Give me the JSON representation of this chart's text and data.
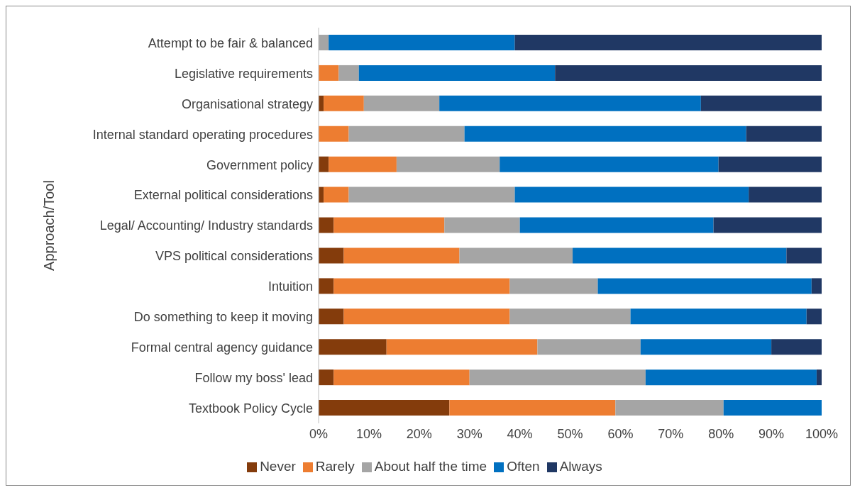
{
  "chart_data": {
    "type": "bar",
    "orientation": "horizontal",
    "stacked": true,
    "ylabel": "Approach/Tool",
    "categories": [
      "Attempt to be fair & balanced",
      "Legislative requirements",
      "Organisational strategy",
      "Internal standard operating procedures",
      "Government policy",
      "External political considerations",
      "Legal/ Accounting/ Industry standards",
      "VPS political considerations",
      "Intuition",
      "Do something to keep it moving",
      "Formal central agency guidance",
      "Follow my boss' lead",
      "Textbook Policy Cycle"
    ],
    "series": [
      {
        "name": "Never",
        "color": "#843c0c",
        "values": [
          0,
          0,
          1,
          0,
          2,
          1,
          3,
          5,
          3,
          5,
          13.5,
          3,
          26
        ]
      },
      {
        "name": "Rarely",
        "color": "#ed7d31",
        "values": [
          0,
          4,
          8,
          6,
          13.5,
          5,
          22,
          23,
          35,
          33,
          30,
          27,
          33
        ]
      },
      {
        "name": "About half the time",
        "color": "#a5a5a5",
        "values": [
          2,
          4,
          15,
          23,
          20.5,
          33,
          15,
          22.5,
          17.5,
          24,
          20.5,
          35,
          21.5
        ]
      },
      {
        "name": "Often",
        "color": "#0070c0",
        "values": [
          37,
          39,
          52,
          56,
          43.5,
          46.5,
          38.5,
          42.5,
          42.5,
          35,
          26,
          34,
          19.5
        ]
      },
      {
        "name": "Always",
        "color": "#203864",
        "values": [
          61,
          53,
          24,
          15,
          20.5,
          14.5,
          21.5,
          7,
          2,
          3,
          10,
          1,
          0
        ]
      }
    ],
    "xlim": [
      0,
      100
    ],
    "xticks": [
      {
        "value": 0,
        "label": "0%"
      },
      {
        "value": 10,
        "label": "10%"
      },
      {
        "value": 20,
        "label": "20%"
      },
      {
        "value": 30,
        "label": "30%"
      },
      {
        "value": 40,
        "label": "40%"
      },
      {
        "value": 50,
        "label": "50%"
      },
      {
        "value": 60,
        "label": "60%"
      },
      {
        "value": 70,
        "label": "70%"
      },
      {
        "value": 80,
        "label": "80%"
      },
      {
        "value": 90,
        "label": "90%"
      },
      {
        "value": 100,
        "label": "100%"
      }
    ],
    "grid": false,
    "legend": "bottom"
  }
}
